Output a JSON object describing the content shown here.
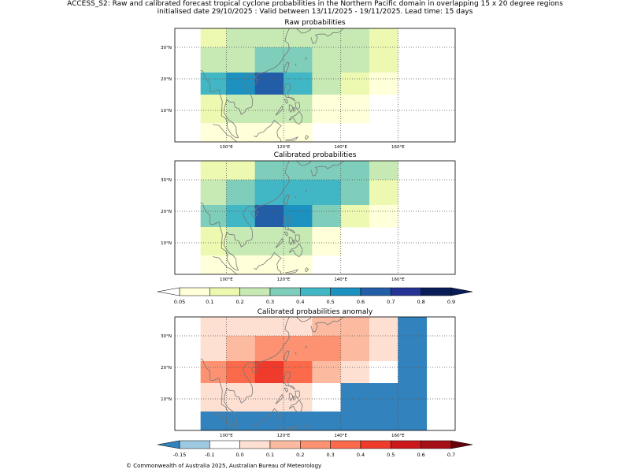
{
  "header": {
    "line1": "ACCESS_S2: Raw and calibrated forecast tropical cyclone probabilities in the Northern Pacific domain in overlapping 15 x 20 degree regions",
    "line2": "initialised date 29/10/2025 :  Valid between 13/11/2025 - 19/11/2025. Lead time: 15 days"
  },
  "map": {
    "x_ticks": [
      "100°E",
      "120°E",
      "140°E",
      "160°E"
    ],
    "y_ticks": [
      "30°N",
      "20°N",
      "10°N"
    ],
    "x_tick_values": [
      100,
      120,
      140,
      160
    ],
    "y_tick_values": [
      30,
      20,
      10
    ],
    "lon_range": [
      82,
      180
    ],
    "lat_range": [
      0,
      36
    ],
    "cell_lons": [
      91,
      100,
      110,
      120,
      130,
      140,
      150,
      160,
      170
    ],
    "cell_lats": [
      0,
      6,
      15,
      22,
      30,
      36
    ]
  },
  "panels": [
    {
      "title": "Raw probabilities",
      "scale": "probability",
      "grid": [
        [
          0.15,
          0.25,
          0.25,
          0.25,
          0.25,
          0.25,
          0.12,
          null
        ],
        [
          0.25,
          0.25,
          0.35,
          0.35,
          0.25,
          0.25,
          0.12,
          null
        ],
        [
          0.45,
          0.55,
          0.65,
          0.45,
          0.25,
          0.15,
          0.07,
          null
        ],
        [
          0.15,
          0.25,
          0.25,
          0.25,
          0.07,
          0.07,
          null,
          null
        ],
        [
          0.07,
          0.07,
          0.07,
          0.07,
          null,
          null,
          null,
          null
        ]
      ]
    },
    {
      "title": "Calibrated probabilities",
      "scale": "probability",
      "grid": [
        [
          0.15,
          0.15,
          0.35,
          0.35,
          0.35,
          0.35,
          0.25,
          null
        ],
        [
          0.25,
          0.35,
          0.45,
          0.45,
          0.45,
          0.35,
          0.12,
          null
        ],
        [
          0.35,
          0.45,
          0.65,
          0.55,
          0.35,
          0.15,
          0.07,
          null
        ],
        [
          0.15,
          0.25,
          0.25,
          0.25,
          0.07,
          null,
          null,
          null
        ],
        [
          0.07,
          0.07,
          0.07,
          0.07,
          null,
          null,
          null,
          null
        ]
      ]
    },
    {
      "title": "Calibrated probabilities anomaly",
      "scale": "anomaly",
      "grid": [
        [
          0.05,
          0.05,
          0.05,
          0.05,
          0.15,
          0.15,
          0.05,
          -0.2
        ],
        [
          0.05,
          0.15,
          0.25,
          0.25,
          0.25,
          0.15,
          0.0,
          -0.2
        ],
        [
          0.25,
          0.35,
          0.45,
          0.35,
          0.15,
          0.0,
          -0.1,
          -0.2
        ],
        [
          0.0,
          0.05,
          0.05,
          0.05,
          -0.1,
          -0.2,
          -0.2,
          -0.2
        ],
        [
          -0.2,
          -0.2,
          -0.2,
          -0.2,
          -0.2,
          -0.2,
          -0.2,
          -0.2
        ]
      ]
    }
  ],
  "colorbars": {
    "probability": {
      "labels": [
        "0.05",
        "0.1",
        "0.2",
        "0.3",
        "0.4",
        "0.5",
        "0.6",
        "0.7",
        "0.8",
        "0.9"
      ],
      "bounds": [
        0.05,
        0.1,
        0.2,
        0.3,
        0.4,
        0.5,
        0.6,
        0.7,
        0.8,
        0.9
      ],
      "under_color": "#ffffff",
      "over_color": "#081d58",
      "colors": [
        "#ffffd9",
        "#edf8b1",
        "#c7e9b4",
        "#7fcdbb",
        "#41b6c4",
        "#1d91c0",
        "#225ea8",
        "#253494",
        "#081d58"
      ]
    },
    "anomaly": {
      "labels": [
        "-0.15",
        "-0.1",
        "0.0",
        "0.1",
        "0.2",
        "0.3",
        "0.4",
        "0.5",
        "0.6",
        "0.7"
      ],
      "bounds": [
        -0.15,
        -0.1,
        0.0,
        0.1,
        0.2,
        0.3,
        0.4,
        0.5,
        0.6,
        0.7
      ],
      "under_color": "#3182bd",
      "over_color": "#67000d",
      "colors": [
        "#9ecae1",
        "#ffffff",
        "#fee0d2",
        "#fcbba1",
        "#fc9272",
        "#fb6a4a",
        "#ef3b2c",
        "#cb181d",
        "#a50f15"
      ]
    }
  },
  "footer": {
    "copyright": "© Commonwealth of Australia 2025, Australian Bureau of Meteorology"
  },
  "colors": {
    "coastline": "#777777",
    "gridline": "#555555",
    "frame": "#000000"
  }
}
